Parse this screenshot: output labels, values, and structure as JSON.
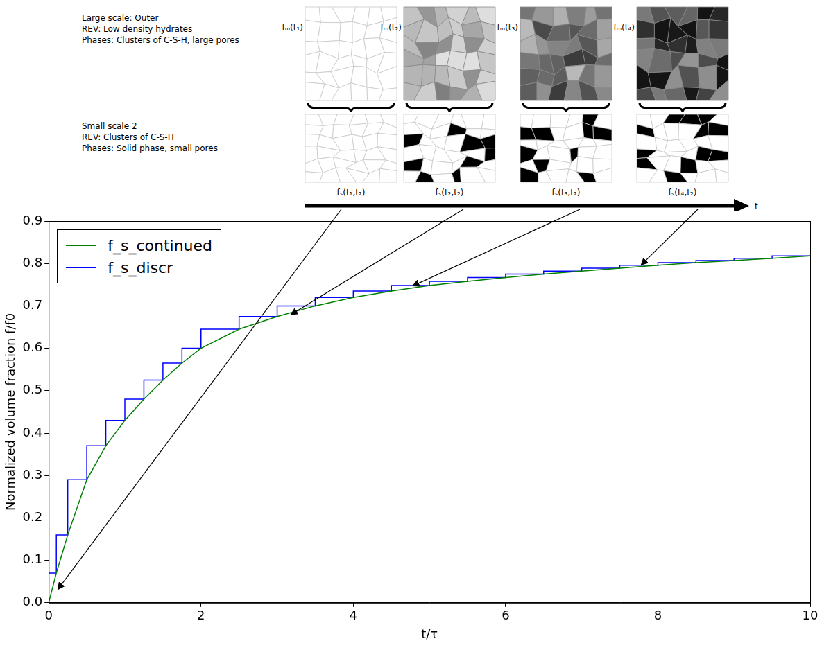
{
  "diagram": {
    "large_scale": {
      "lines": [
        "Large scale: Outer",
        "REV: Low density hydrates",
        "Phases: Clusters of C-S-H, large pores"
      ],
      "panels": [
        "fₘ(t₁)",
        "fₘ(t₂)",
        "fₘ(t₃)",
        "fₘ(t₄)"
      ]
    },
    "small_scale": {
      "lines": [
        "Small scale 2",
        "REV: Clusters of C-S-H",
        "Phases: Solid phase, small pores"
      ],
      "panels": [
        "fₛ(t₁,t₂)",
        "fₛ(t₂,t₂)",
        "fₛ(t₃,t₂)",
        "fₛ(t₄,t₂)"
      ]
    },
    "time_axis_label": "t"
  },
  "chart_data": {
    "type": "line",
    "x_label": "t/τ",
    "y_label": "Normalized volume fraction f/f0",
    "xlim": [
      0,
      10
    ],
    "xticks": [
      0,
      2,
      4,
      6,
      8,
      10
    ],
    "ylim": [
      0,
      0.9
    ],
    "yticks": [
      {
        "value": 0,
        "label": "0.0"
      },
      {
        "value": 0.1,
        "label": "0.1"
      },
      {
        "value": 0.2,
        "label": "0.2"
      },
      {
        "value": 0.3,
        "label": "0.3"
      },
      {
        "value": 0.4,
        "label": "0.4"
      },
      {
        "value": 0.5,
        "label": "0.5"
      },
      {
        "value": 0.6,
        "label": "0.6"
      },
      {
        "value": 0.7,
        "label": "0.7"
      },
      {
        "value": 0.8,
        "label": "0.8"
      },
      {
        "value": 0.9,
        "label": "0.9"
      }
    ],
    "grid": false,
    "legend": "upper left",
    "series": [
      {
        "name": "f_s_continued",
        "color": "#008000",
        "line_style": "solid",
        "marker": "none",
        "x": [
          0,
          0.1,
          0.25,
          0.5,
          0.75,
          1,
          1.25,
          1.5,
          1.75,
          2,
          2.5,
          3,
          3.5,
          4,
          4.5,
          5,
          5.5,
          6,
          6.5,
          7,
          7.5,
          8,
          8.5,
          9,
          9.5,
          10
        ],
        "values": [
          0,
          0.07,
          0.16,
          0.29,
          0.37,
          0.43,
          0.48,
          0.525,
          0.565,
          0.6,
          0.645,
          0.675,
          0.7,
          0.72,
          0.735,
          0.748,
          0.758,
          0.767,
          0.775,
          0.782,
          0.789,
          0.796,
          0.802,
          0.807,
          0.812,
          0.818
        ]
      },
      {
        "name": "f_s_discr",
        "color": "#0000ff",
        "line_style": "steps",
        "marker": "none",
        "x": [
          0,
          0.1,
          0.25,
          0.5,
          0.75,
          1,
          1.25,
          1.5,
          1.75,
          2,
          2.5,
          3,
          3.5,
          4,
          4.5,
          5,
          5.5,
          6,
          6.5,
          7,
          7.5,
          8,
          8.5,
          9,
          9.5,
          10
        ],
        "values": [
          0,
          0.07,
          0.16,
          0.29,
          0.37,
          0.43,
          0.48,
          0.525,
          0.565,
          0.6,
          0.645,
          0.675,
          0.7,
          0.72,
          0.735,
          0.748,
          0.758,
          0.767,
          0.775,
          0.782,
          0.789,
          0.796,
          0.802,
          0.807,
          0.812,
          0.818
        ]
      }
    ]
  }
}
